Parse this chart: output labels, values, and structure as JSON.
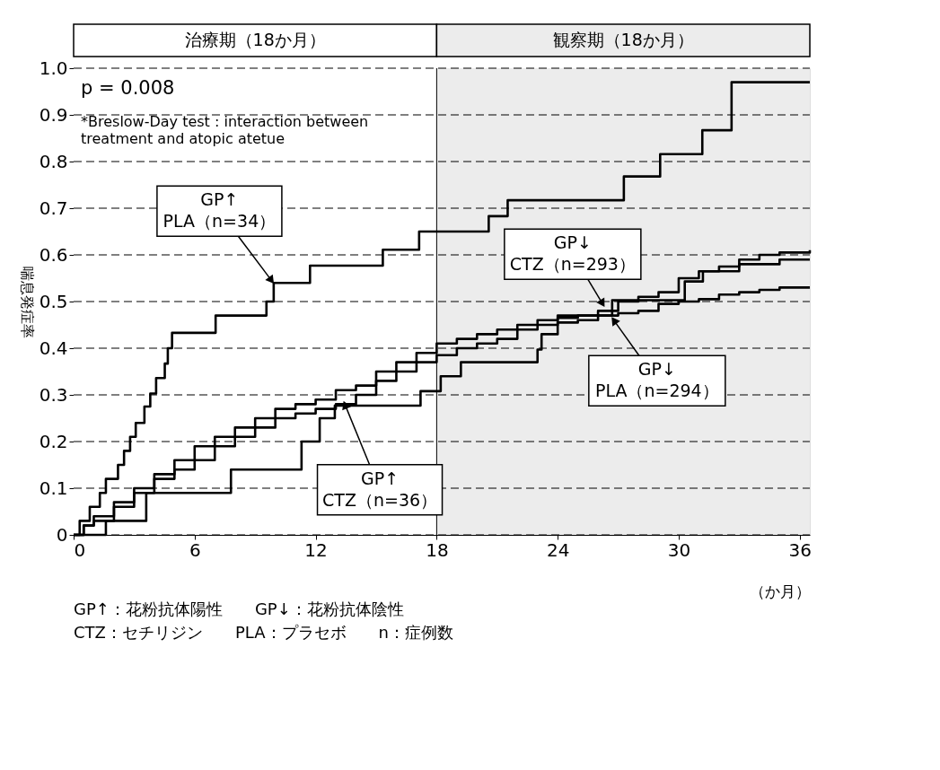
{
  "chart_data": {
    "type": "step",
    "ylabel": "喘息発症率",
    "xlabel": "（か月）",
    "xlim": [
      0,
      36.5
    ],
    "xticks": [
      0,
      6,
      12,
      18,
      24,
      30,
      36
    ],
    "ylim": [
      0,
      1
    ],
    "yticks": [
      0,
      0.1,
      0.2,
      0.3,
      0.4,
      0.5,
      0.6,
      0.7,
      0.8,
      0.9,
      {
        "value": 1,
        "label": "1.0"
      }
    ],
    "grid": "y",
    "line_style": "solid",
    "marker": "none",
    "bands": [
      {
        "axis": "x",
        "from": 0,
        "to": 18,
        "label": "治療期（18か月）",
        "color": "#ffffff"
      },
      {
        "axis": "x",
        "from": 18,
        "to": 36.5,
        "label": "観察期（18か月）",
        "color": "#ececec"
      }
    ],
    "ref_lines": [
      {
        "axis": "x",
        "value": 18,
        "label": null
      }
    ],
    "series": [
      {
        "color": "#000000",
        "x": [
          0,
          0.3,
          0.8,
          1.3,
          1.6,
          2.2,
          2.5,
          2.8,
          3.08,
          3.51,
          3.8,
          4.09,
          4.52,
          4.67,
          4.88,
          7.04,
          9.56,
          9.92,
          11.72,
          15.33,
          17.13,
          20.58,
          21.52,
          27.28,
          29.08,
          31.17,
          32.62,
          36.5
        ],
        "values": [
          0,
          0.03,
          0.06,
          0.09,
          0.12,
          0.15,
          0.18,
          0.21,
          0.24,
          0.275,
          0.303,
          0.336,
          0.367,
          0.4,
          0.433,
          0.47,
          0.5,
          0.54,
          0.577,
          0.611,
          0.65,
          0.683,
          0.717,
          0.768,
          0.816,
          0.867,
          0.97,
          0.97
        ]
      },
      {
        "color": "#000000",
        "x": [
          0,
          0.5,
          1,
          2,
          3,
          4,
          5,
          6,
          7,
          8,
          9,
          10,
          11,
          12,
          13,
          14,
          15,
          16,
          17,
          18,
          19,
          20,
          21,
          22,
          23,
          24,
          25,
          26,
          27,
          28,
          29,
          30,
          31,
          32,
          33,
          34,
          35,
          36.5
        ],
        "values": [
          0,
          0.02,
          0.04,
          0.07,
          0.1,
          0.13,
          0.16,
          0.19,
          0.21,
          0.23,
          0.25,
          0.27,
          0.28,
          0.29,
          0.31,
          0.32,
          0.35,
          0.37,
          0.39,
          0.41,
          0.42,
          0.43,
          0.44,
          0.45,
          0.46,
          0.465,
          0.47,
          0.48,
          0.5,
          0.51,
          0.52,
          0.55,
          0.565,
          0.575,
          0.59,
          0.6,
          0.605,
          0.61
        ]
      },
      {
        "color": "#000000",
        "x": [
          0,
          0.5,
          1,
          2,
          3,
          4,
          5,
          6,
          7,
          8,
          9,
          10,
          11,
          12,
          13,
          14,
          15,
          16,
          17,
          18,
          19,
          20,
          21,
          22,
          23,
          24,
          25,
          26,
          27,
          28,
          29,
          30,
          31,
          32,
          33,
          34,
          35,
          36.5
        ],
        "values": [
          0,
          0.02,
          0.03,
          0.06,
          0.09,
          0.12,
          0.14,
          0.16,
          0.19,
          0.21,
          0.23,
          0.25,
          0.26,
          0.27,
          0.28,
          0.3,
          0.33,
          0.35,
          0.37,
          0.385,
          0.4,
          0.41,
          0.42,
          0.44,
          0.45,
          0.455,
          0.46,
          0.47,
          0.475,
          0.48,
          0.495,
          0.5,
          0.505,
          0.515,
          0.52,
          0.525,
          0.53,
          0.53
        ]
      },
      {
        "color": "#000000",
        "x": [
          0,
          1.6,
          3.6,
          7.8,
          11.3,
          12.2,
          12.95,
          17.2,
          18.2,
          19.2,
          23.0,
          23.2,
          24.0,
          26.7,
          30.3,
          31.2,
          33,
          35,
          36.5
        ],
        "values": [
          0,
          0.03,
          0.09,
          0.14,
          0.2,
          0.25,
          0.277,
          0.308,
          0.34,
          0.37,
          0.397,
          0.43,
          0.47,
          0.503,
          0.543,
          0.565,
          0.58,
          0.59,
          0.59
        ]
      }
    ],
    "annotations": [
      "p = 0.008",
      "*Breslow-Day test : interaction between\ntreatment and atopic atetue",
      "GP↑：花粉抗体陽性　　GP↓：花粉抗体陰性",
      "CTZ：セチリジン　　PLA：プラセボ　　n：症例数",
      {
        "text": "GP↑\nPLA（n=34）",
        "x": 9.9,
        "y": 0.54
      },
      {
        "text": "GP↓\nCTZ（n=293）",
        "x": 26.3,
        "y": 0.49
      },
      {
        "text": "GP↓\nPLA（n=294）",
        "x": 26.7,
        "y": 0.465
      },
      {
        "text": "GP↑\nCTZ（n=36）",
        "x": 13.4,
        "y": 0.285
      }
    ]
  }
}
